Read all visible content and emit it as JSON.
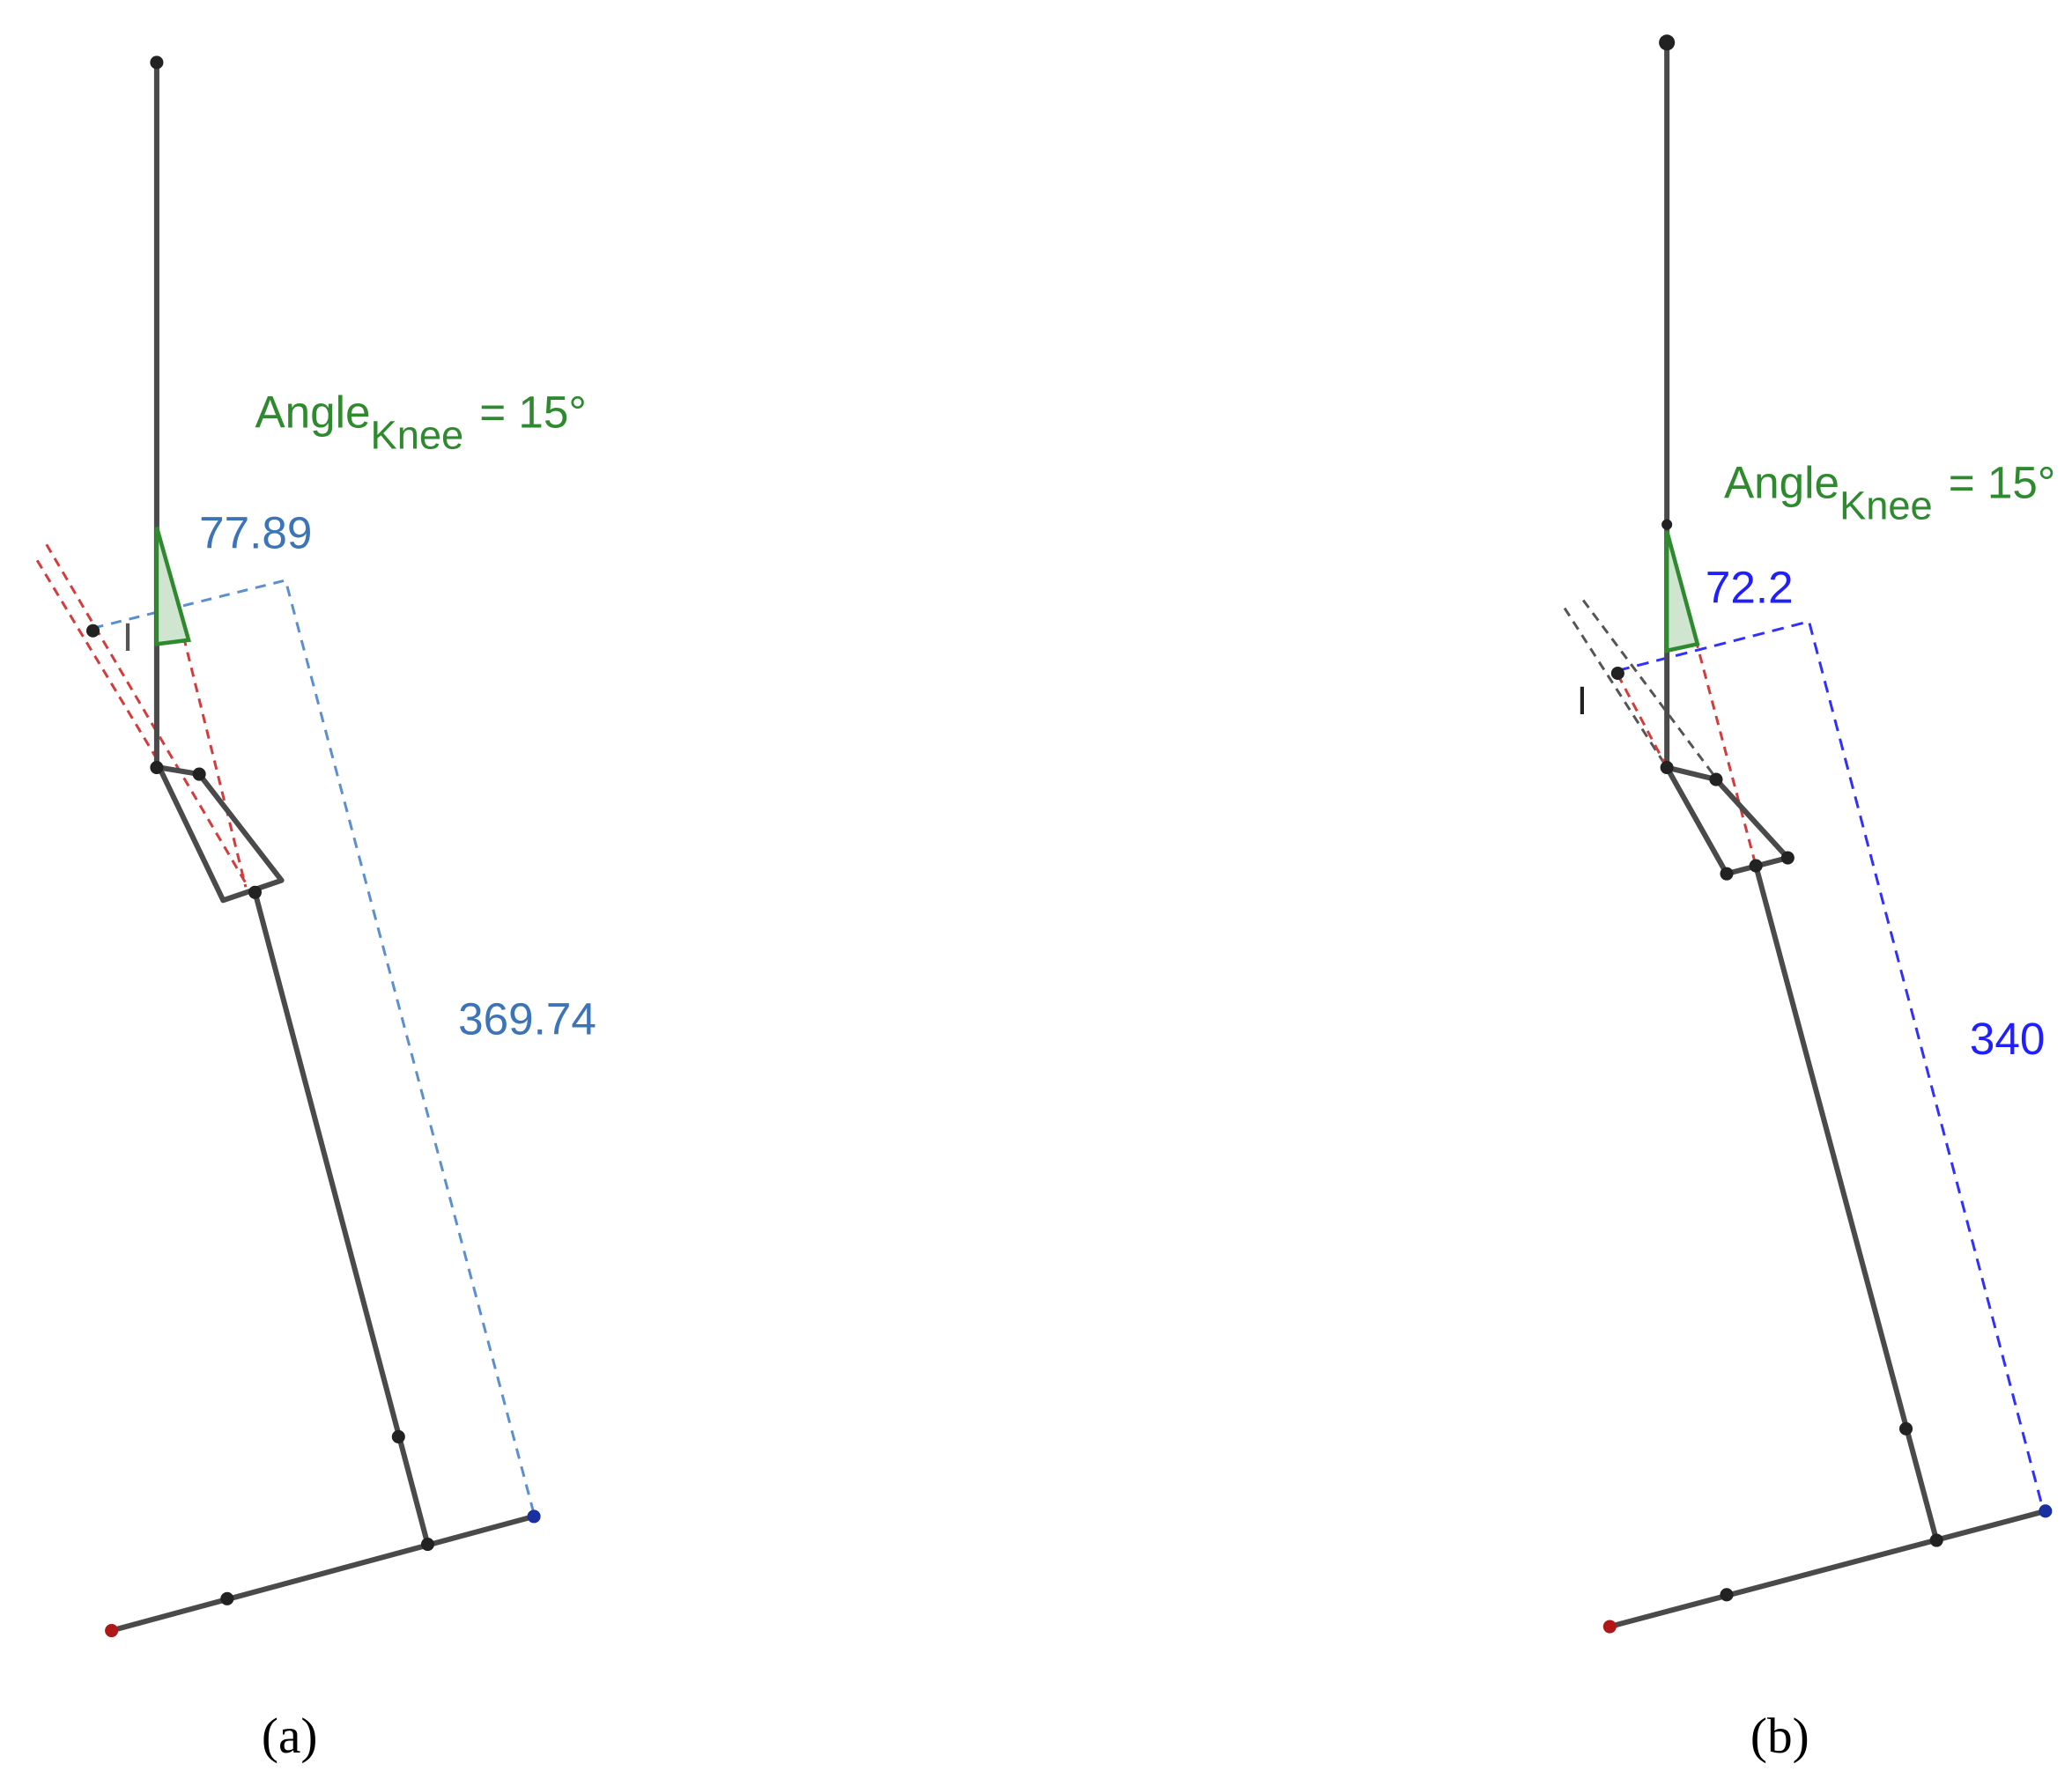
{
  "panels": [
    {
      "angle_label": {
        "base": "Angle",
        "sub": "Knee",
        "rest": "= 15°"
      },
      "width_label": "77.89",
      "length_label": "369.74",
      "point_label": "I",
      "caption": "(a)"
    },
    {
      "angle_label": {
        "base": "Angle",
        "sub": "Knee",
        "rest": "= 15°"
      },
      "width_label": "72.2",
      "length_label": "340",
      "point_label": "I",
      "caption": "(b)"
    }
  ]
}
